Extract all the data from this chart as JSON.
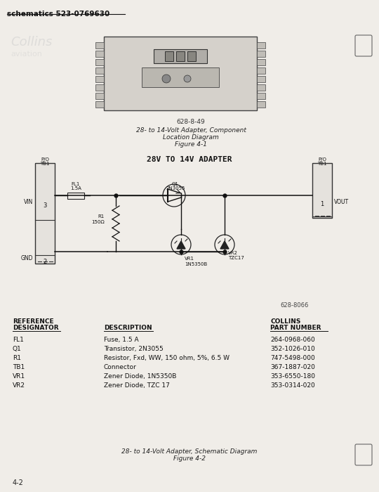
{
  "bg_color": "#f0ede8",
  "title_header": "schematics 523-0769630",
  "schematic_title": "28V TO 14V ADAPTER",
  "fig1_caption_line1": "28- to 14-Volt Adapter, Component",
  "fig1_caption_line2": "Location Diagram",
  "fig1_caption_line3": "Figure 4-1",
  "fig2_caption_line1": "28- to 14-Volt Adapter, Schematic Diagram",
  "fig2_caption_line2": "Figure 4-2",
  "fig1_num": "628-8-49",
  "fig2_num": "628-8066",
  "page_num": "4-2",
  "components": [
    {
      "ref": "FL1",
      "desc": "Fuse, 1.5 A",
      "part": "264-0968-060"
    },
    {
      "ref": "Q1",
      "desc": "Transistor, 2N3055",
      "part": "352-1026-010"
    },
    {
      "ref": "R1",
      "desc": "Resistor, Fxd, WW, 150 ohm, 5%, 6.5 W",
      "part": "747-5498-000"
    },
    {
      "ref": "TB1",
      "desc": "Connector",
      "part": "367-1887-020"
    },
    {
      "ref": "VR1",
      "desc": "Zener Diode, 1N5350B",
      "part": "353-6550-180"
    },
    {
      "ref": "VR2",
      "desc": "Zener Diode, TZC 17",
      "part": "353-0314-020"
    }
  ]
}
